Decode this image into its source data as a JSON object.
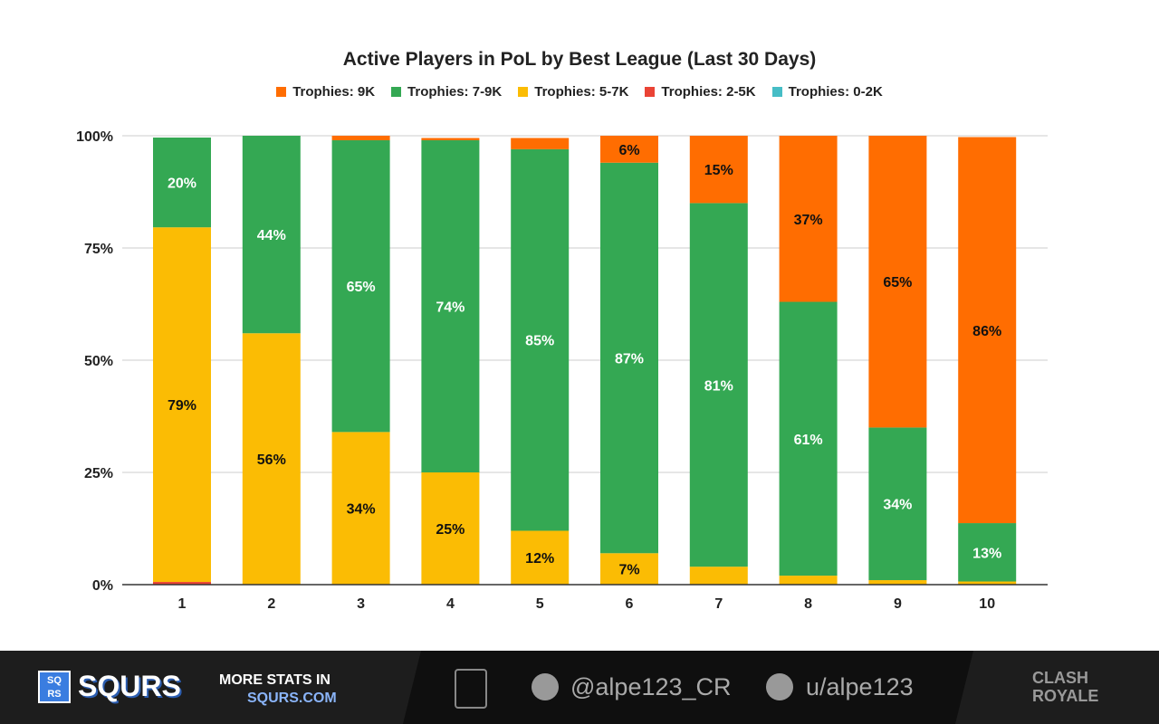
{
  "chart_data": {
    "type": "bar",
    "stacked": true,
    "percent": true,
    "title": "Active Players in PoL by Best League (Last 30 Days)",
    "categories": [
      "1",
      "2",
      "3",
      "4",
      "5",
      "6",
      "7",
      "8",
      "9",
      "10"
    ],
    "yticks": [
      "0%",
      "25%",
      "50%",
      "75%",
      "100%"
    ],
    "ylim": [
      0,
      100
    ],
    "grid": true,
    "legend_position": "top",
    "series": [
      {
        "name": "Trophies: 0-2K",
        "color": "#46bdc6",
        "values": [
          0,
          0,
          0,
          0,
          0,
          0,
          0,
          0,
          0,
          0
        ]
      },
      {
        "name": "Trophies: 2-5K",
        "color": "#ea4335",
        "values": [
          0.6,
          0,
          0,
          0,
          0,
          0,
          0,
          0,
          0,
          0
        ]
      },
      {
        "name": "Trophies: 5-7K",
        "color": "#fbbc04",
        "values": [
          79,
          56,
          34,
          25,
          12,
          7,
          4,
          2,
          1,
          0.7
        ]
      },
      {
        "name": "Trophies: 7-9K",
        "color": "#34a853",
        "values": [
          20,
          44,
          65,
          74,
          85,
          87,
          81,
          61,
          34,
          13
        ]
      },
      {
        "name": "Trophies: 9K",
        "color": "#ff6d01",
        "values": [
          0,
          0,
          1,
          0.5,
          2.5,
          6,
          15,
          37,
          65,
          86
        ]
      }
    ]
  },
  "footer": {
    "brand": "SQURS",
    "logo_letters": "SQ RS",
    "more_stats": "MORE STATS IN",
    "site": "SQURS.COM",
    "twitter": "@alpe123_CR",
    "reddit": "u/alpe123",
    "game_logo": "CLASH ROYALE"
  }
}
